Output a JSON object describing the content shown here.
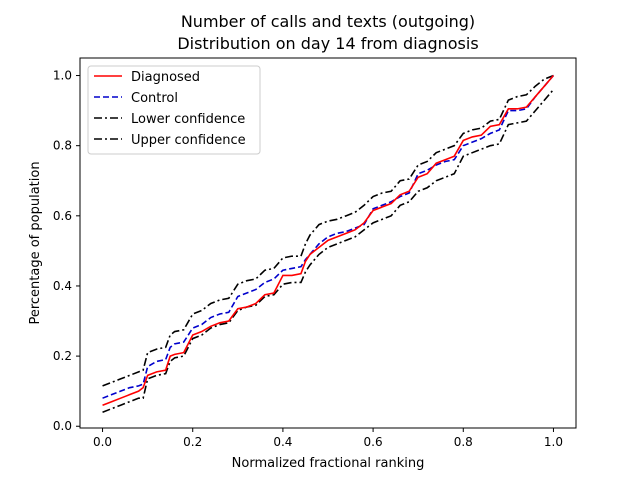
{
  "chart_data": {
    "type": "line",
    "title": [
      "Number of calls and texts (outgoing)",
      "Distribution on day 14 from diagnosis"
    ],
    "xlabel": "Normalized fractional ranking",
    "ylabel": "Percentage of population",
    "xlim": [
      -0.05,
      1.05
    ],
    "ylim": [
      -0.005,
      1.05
    ],
    "xticks": [
      0.0,
      0.2,
      0.4,
      0.6,
      0.8,
      1.0
    ],
    "xtick_labels": [
      "0.0",
      "0.2",
      "0.4",
      "0.6",
      "0.8",
      "1.0"
    ],
    "yticks": [
      0.0,
      0.2,
      0.4,
      0.6,
      0.8,
      1.0
    ],
    "ytick_labels": [
      "0.0",
      "0.2",
      "0.4",
      "0.6",
      "0.8",
      "1.0"
    ],
    "grid": false,
    "legend_position": "upper-left",
    "x": [
      0.0,
      0.02,
      0.04,
      0.06,
      0.08,
      0.09,
      0.1,
      0.12,
      0.14,
      0.15,
      0.16,
      0.18,
      0.2,
      0.22,
      0.24,
      0.26,
      0.28,
      0.3,
      0.32,
      0.34,
      0.36,
      0.38,
      0.4,
      0.42,
      0.44,
      0.45,
      0.46,
      0.48,
      0.5,
      0.52,
      0.54,
      0.56,
      0.58,
      0.6,
      0.62,
      0.64,
      0.66,
      0.68,
      0.7,
      0.72,
      0.74,
      0.76,
      0.78,
      0.8,
      0.82,
      0.84,
      0.86,
      0.88,
      0.9,
      0.92,
      0.94,
      0.96,
      0.98,
      1.0
    ],
    "series": [
      {
        "name": "Diagnosed",
        "color": "#ff0000",
        "dash": "solid",
        "values": [
          0.06,
          0.07,
          0.08,
          0.09,
          0.1,
          0.11,
          0.145,
          0.155,
          0.16,
          0.2,
          0.205,
          0.21,
          0.26,
          0.27,
          0.285,
          0.295,
          0.3,
          0.335,
          0.34,
          0.35,
          0.375,
          0.38,
          0.43,
          0.43,
          0.435,
          0.47,
          0.49,
          0.51,
          0.53,
          0.54,
          0.55,
          0.56,
          0.58,
          0.615,
          0.625,
          0.635,
          0.66,
          0.67,
          0.71,
          0.72,
          0.75,
          0.76,
          0.77,
          0.815,
          0.825,
          0.83,
          0.855,
          0.86,
          0.905,
          0.905,
          0.91,
          0.94,
          0.97,
          1.0
        ]
      },
      {
        "name": "Control",
        "color": "#0000cc",
        "dash": "dashed",
        "values": [
          0.08,
          0.09,
          0.1,
          0.11,
          0.115,
          0.12,
          0.17,
          0.185,
          0.19,
          0.225,
          0.235,
          0.24,
          0.28,
          0.29,
          0.31,
          0.32,
          0.325,
          0.37,
          0.38,
          0.39,
          0.41,
          0.42,
          0.445,
          0.45,
          0.455,
          0.475,
          0.49,
          0.52,
          0.54,
          0.55,
          0.555,
          0.565,
          0.575,
          0.62,
          0.63,
          0.64,
          0.655,
          0.665,
          0.72,
          0.73,
          0.745,
          0.755,
          0.76,
          0.8,
          0.81,
          0.82,
          0.835,
          0.845,
          0.9,
          0.9,
          0.905,
          0.94,
          0.97,
          1.0
        ]
      },
      {
        "name": "Lower confidence",
        "color": "#000000",
        "dash": "dashdot",
        "values": [
          0.04,
          0.05,
          0.06,
          0.07,
          0.08,
          0.08,
          0.135,
          0.145,
          0.15,
          0.185,
          0.195,
          0.2,
          0.25,
          0.26,
          0.28,
          0.29,
          0.295,
          0.33,
          0.34,
          0.345,
          0.37,
          0.375,
          0.405,
          0.41,
          0.41,
          0.44,
          0.46,
          0.49,
          0.51,
          0.52,
          0.53,
          0.54,
          0.56,
          0.58,
          0.59,
          0.6,
          0.63,
          0.64,
          0.67,
          0.68,
          0.7,
          0.71,
          0.72,
          0.77,
          0.78,
          0.79,
          0.8,
          0.805,
          0.86,
          0.865,
          0.87,
          0.9,
          0.93,
          0.96
        ]
      },
      {
        "name": "Upper confidence",
        "color": "#000000",
        "dash": "dashdot",
        "values": [
          0.115,
          0.125,
          0.135,
          0.145,
          0.155,
          0.16,
          0.21,
          0.22,
          0.225,
          0.26,
          0.27,
          0.275,
          0.32,
          0.33,
          0.35,
          0.36,
          0.365,
          0.405,
          0.415,
          0.42,
          0.445,
          0.45,
          0.48,
          0.485,
          0.485,
          0.52,
          0.545,
          0.575,
          0.585,
          0.59,
          0.6,
          0.61,
          0.63,
          0.655,
          0.665,
          0.67,
          0.7,
          0.705,
          0.745,
          0.755,
          0.78,
          0.79,
          0.8,
          0.835,
          0.845,
          0.85,
          0.87,
          0.875,
          0.93,
          0.94,
          0.945,
          0.97,
          0.99,
          1.0
        ]
      }
    ]
  }
}
